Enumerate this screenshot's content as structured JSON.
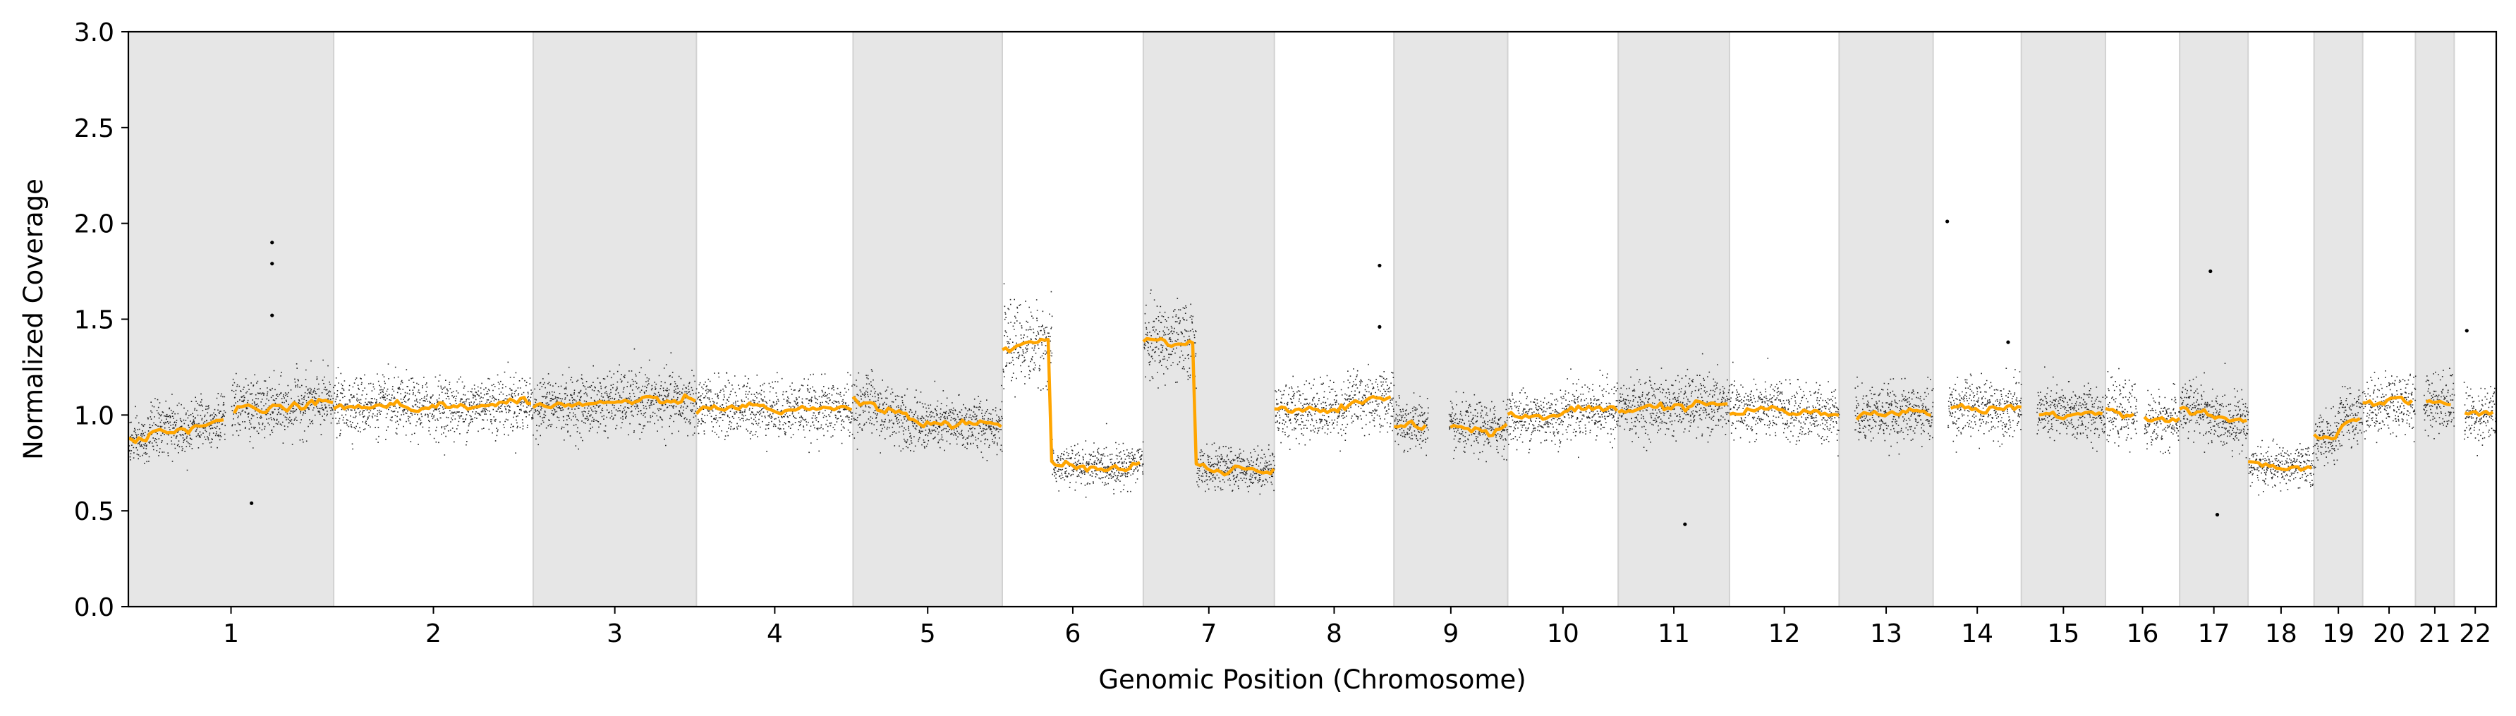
{
  "chart_data": {
    "type": "scatter",
    "xlabel": "Genomic Position (Chromosome)",
    "ylabel": "Normalized Coverage",
    "ylim": [
      0.0,
      3.0
    ],
    "yticks": [
      "0.0",
      "0.5",
      "1.0",
      "1.5",
      "2.0",
      "2.5",
      "3.0"
    ],
    "grid": false,
    "legend": "none",
    "colors": {
      "points": "#000000",
      "segments": "#ffa500",
      "band": "#e6e6e6",
      "band_edge": "#d2d2d2"
    },
    "chromosomes": [
      {
        "label": "1",
        "span": 249,
        "shaded": true,
        "gaps": [
          [
            0.47,
            0.5
          ]
        ],
        "segments": [
          [
            0.0,
            0.1,
            0.86
          ],
          [
            0.1,
            0.2,
            0.93
          ],
          [
            0.2,
            0.3,
            0.93
          ],
          [
            0.3,
            0.5,
            0.97
          ],
          [
            0.5,
            0.6,
            1.04
          ],
          [
            0.6,
            0.8,
            1.03
          ],
          [
            0.8,
            1.0,
            1.06
          ]
        ]
      },
      {
        "label": "2",
        "span": 242,
        "shaded": false,
        "gaps": [],
        "segments": [
          [
            0.0,
            0.3,
            1.05
          ],
          [
            0.3,
            0.7,
            1.04
          ],
          [
            0.7,
            1.0,
            1.06
          ]
        ]
      },
      {
        "label": "3",
        "span": 198,
        "shaded": true,
        "gaps": [],
        "segments": [
          [
            0.0,
            0.4,
            1.05
          ],
          [
            0.4,
            1.0,
            1.07
          ]
        ]
      },
      {
        "label": "4",
        "span": 190,
        "shaded": false,
        "gaps": [],
        "segments": [
          [
            0.0,
            0.5,
            1.04
          ],
          [
            0.5,
            1.0,
            1.03
          ]
        ]
      },
      {
        "label": "5",
        "span": 181,
        "shaded": true,
        "gaps": [],
        "segments": [
          [
            0.0,
            0.15,
            1.06
          ],
          [
            0.15,
            0.35,
            1.01
          ],
          [
            0.35,
            1.0,
            0.95
          ]
        ]
      },
      {
        "label": "6",
        "span": 171,
        "shaded": false,
        "gaps": [],
        "segments": [
          [
            0.0,
            0.35,
            1.37
          ],
          [
            0.35,
            0.88,
            0.73
          ],
          [
            0.88,
            1.0,
            0.75
          ]
        ]
      },
      {
        "label": "7",
        "span": 159,
        "shaded": true,
        "gaps": [],
        "segments": [
          [
            0.0,
            0.4,
            1.38
          ],
          [
            0.4,
            1.0,
            0.72
          ]
        ]
      },
      {
        "label": "8",
        "span": 145,
        "shaded": false,
        "gaps": [],
        "segments": [
          [
            0.0,
            0.25,
            1.02
          ],
          [
            0.25,
            0.6,
            1.03
          ],
          [
            0.6,
            1.0,
            1.08
          ]
        ]
      },
      {
        "label": "9",
        "span": 138,
        "shaded": true,
        "gaps": [
          [
            0.3,
            0.48
          ]
        ],
        "segments": [
          [
            0.0,
            0.3,
            0.95
          ],
          [
            0.48,
            1.0,
            0.93
          ]
        ]
      },
      {
        "label": "10",
        "span": 134,
        "shaded": false,
        "gaps": [],
        "segments": [
          [
            0.0,
            0.5,
            0.99
          ],
          [
            0.5,
            1.0,
            1.03
          ]
        ]
      },
      {
        "label": "11",
        "span": 135,
        "shaded": true,
        "gaps": [],
        "segments": [
          [
            0.0,
            0.5,
            1.04
          ],
          [
            0.5,
            1.0,
            1.05
          ]
        ]
      },
      {
        "label": "12",
        "span": 133,
        "shaded": false,
        "gaps": [],
        "segments": [
          [
            0.0,
            0.5,
            1.03
          ],
          [
            0.5,
            1.0,
            1.01
          ]
        ]
      },
      {
        "label": "13",
        "span": 114,
        "shaded": true,
        "gaps": [
          [
            0.0,
            0.16
          ]
        ],
        "segments": [
          [
            0.0,
            0.16,
            1.04
          ],
          [
            0.16,
            1.0,
            1.01
          ]
        ]
      },
      {
        "label": "14",
        "span": 107,
        "shaded": false,
        "gaps": [
          [
            0.0,
            0.16
          ]
        ],
        "segments": [
          [
            0.0,
            0.16,
            1.07
          ],
          [
            0.16,
            1.0,
            1.04
          ]
        ]
      },
      {
        "label": "15",
        "span": 102,
        "shaded": true,
        "gaps": [
          [
            0.0,
            0.18
          ]
        ],
        "segments": [
          [
            0.0,
            0.18,
            1.01
          ],
          [
            0.18,
            1.0,
            1.01
          ]
        ]
      },
      {
        "label": "16",
        "span": 90,
        "shaded": false,
        "gaps": [
          [
            0.42,
            0.52
          ]
        ],
        "segments": [
          [
            0.0,
            0.42,
            1.01
          ],
          [
            0.52,
            1.0,
            0.97
          ]
        ]
      },
      {
        "label": "17",
        "span": 83,
        "shaded": true,
        "gaps": [],
        "segments": [
          [
            0.0,
            0.4,
            1.03
          ],
          [
            0.4,
            1.0,
            0.97
          ]
        ]
      },
      {
        "label": "18",
        "span": 80,
        "shaded": false,
        "gaps": [],
        "segments": [
          [
            0.0,
            1.0,
            0.73
          ]
        ]
      },
      {
        "label": "19",
        "span": 59,
        "shaded": true,
        "gaps": [],
        "segments": [
          [
            0.0,
            0.5,
            0.88
          ],
          [
            0.5,
            1.0,
            0.99
          ]
        ]
      },
      {
        "label": "20",
        "span": 64,
        "shaded": false,
        "gaps": [],
        "segments": [
          [
            0.0,
            0.5,
            1.05
          ],
          [
            0.5,
            1.0,
            1.07
          ]
        ]
      },
      {
        "label": "21",
        "span": 47,
        "shaded": true,
        "gaps": [
          [
            0.0,
            0.2
          ]
        ],
        "segments": [
          [
            0.0,
            0.2,
            1.1
          ],
          [
            0.2,
            1.0,
            1.07
          ]
        ]
      },
      {
        "label": "22",
        "span": 51,
        "shaded": false,
        "gaps": [
          [
            0.0,
            0.22
          ]
        ],
        "segments": [
          [
            0.0,
            0.22,
            1.07
          ],
          [
            0.22,
            1.0,
            1.0
          ]
        ]
      }
    ],
    "outliers": [
      {
        "chrom": "1",
        "pos": 0.7,
        "y": 1.9
      },
      {
        "chrom": "1",
        "pos": 0.7,
        "y": 1.79
      },
      {
        "chrom": "1",
        "pos": 0.7,
        "y": 1.52
      },
      {
        "chrom": "1",
        "pos": 0.6,
        "y": 0.54
      },
      {
        "chrom": "8",
        "pos": 0.88,
        "y": 1.78
      },
      {
        "chrom": "8",
        "pos": 0.88,
        "y": 1.46
      },
      {
        "chrom": "11",
        "pos": 0.6,
        "y": 0.43
      },
      {
        "chrom": "14",
        "pos": 0.16,
        "y": 2.01
      },
      {
        "chrom": "14",
        "pos": 0.85,
        "y": 1.38
      },
      {
        "chrom": "17",
        "pos": 0.45,
        "y": 1.75
      },
      {
        "chrom": "17",
        "pos": 0.55,
        "y": 0.48
      },
      {
        "chrom": "22",
        "pos": 0.3,
        "y": 1.44
      }
    ]
  }
}
